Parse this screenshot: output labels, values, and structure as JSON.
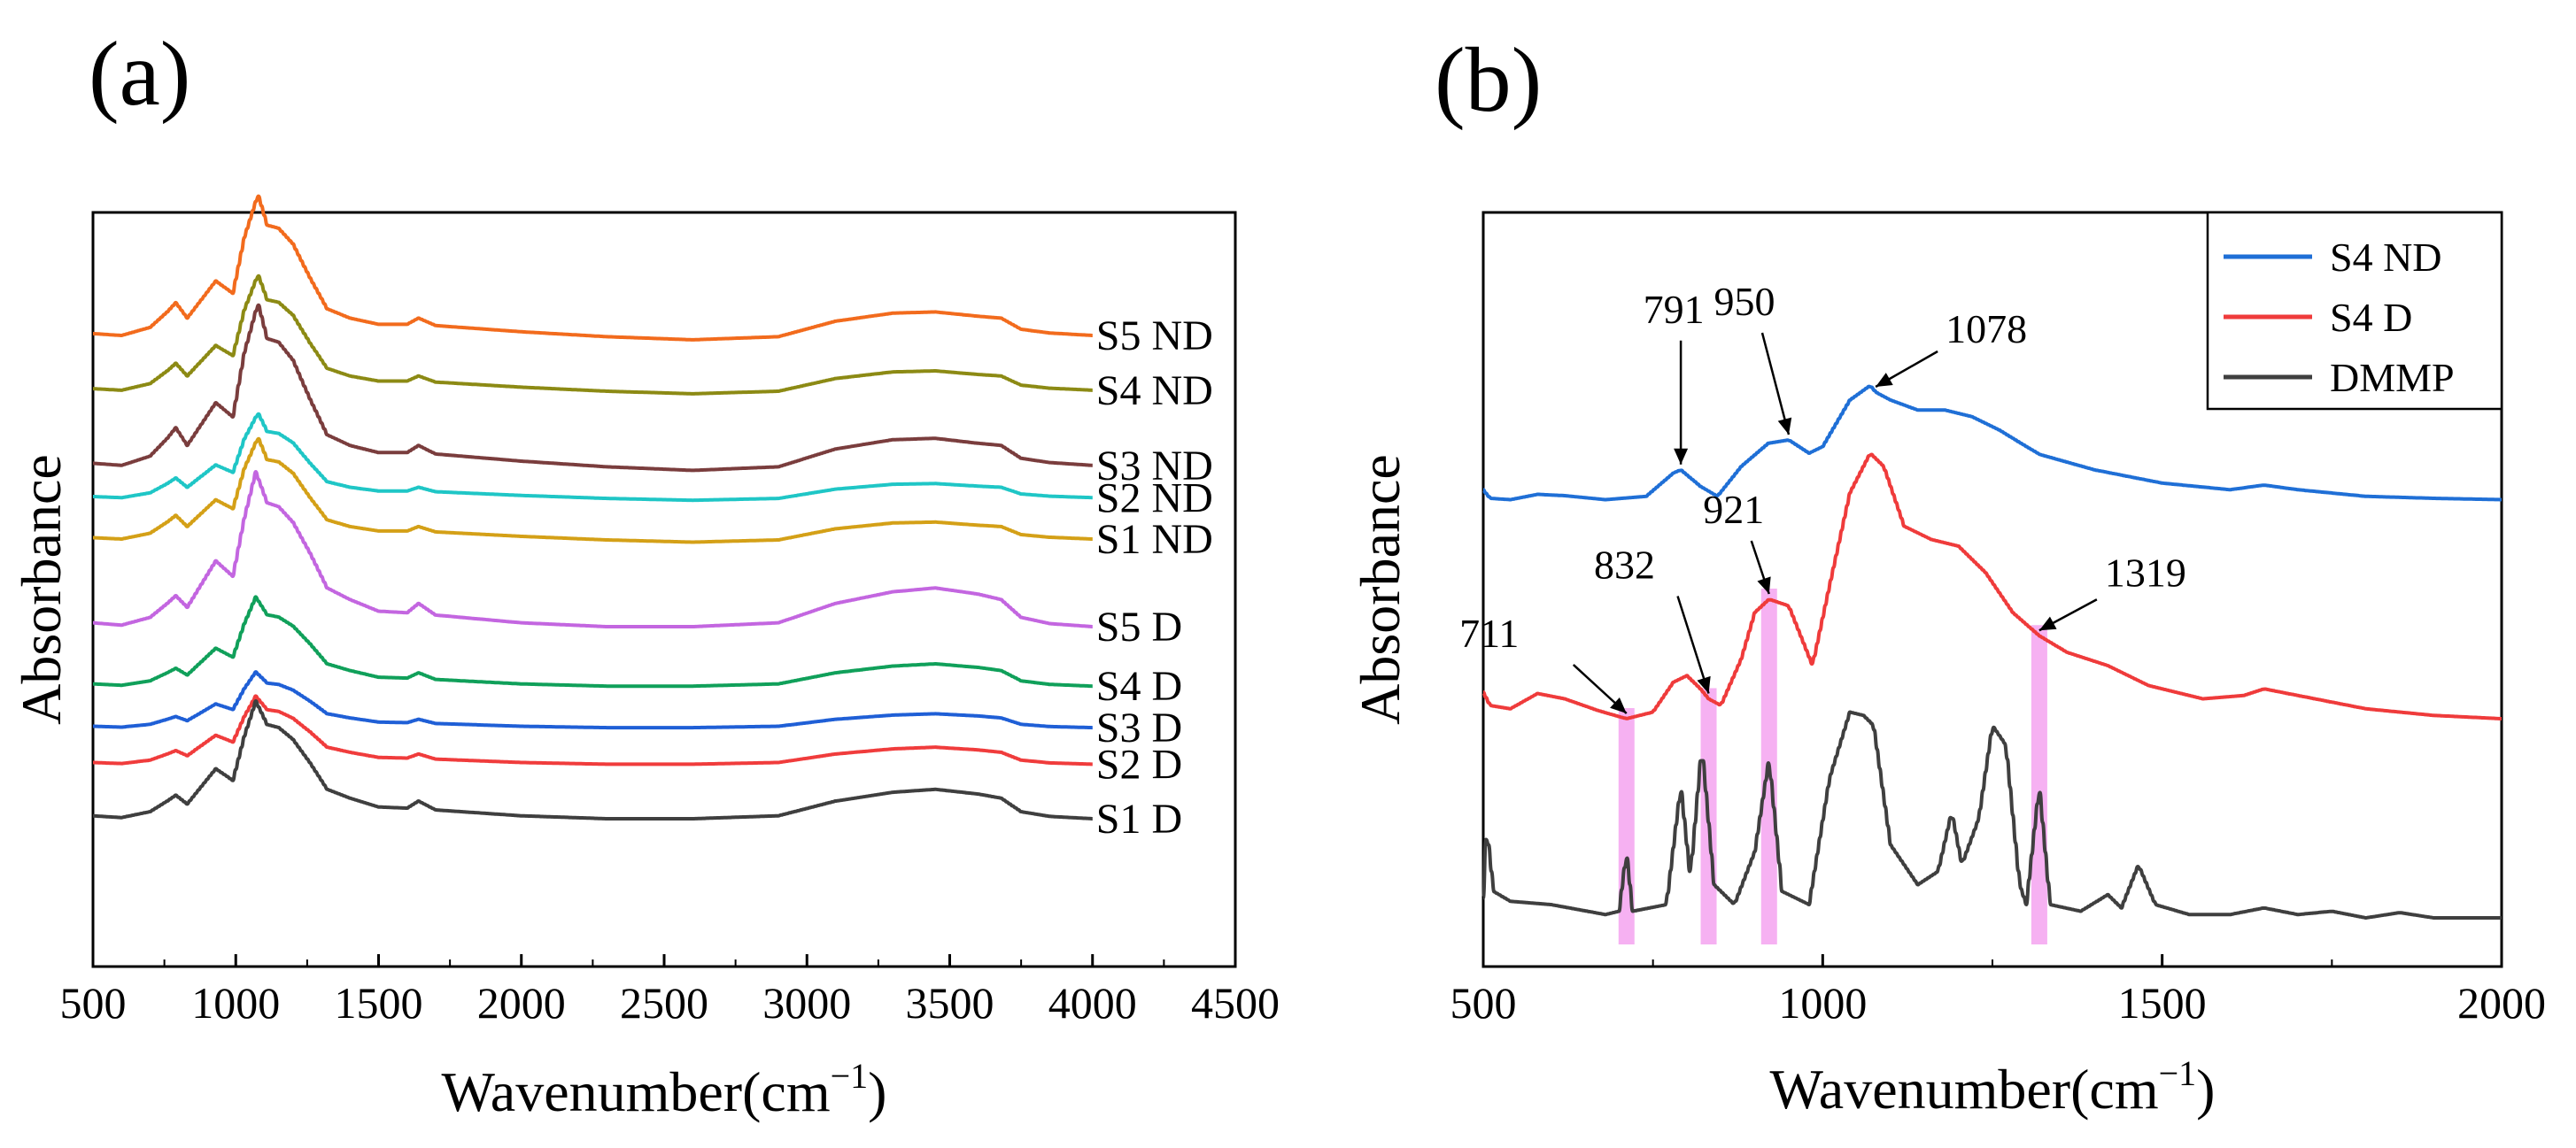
{
  "chart_data": [
    {
      "panel": "(a)",
      "type": "line",
      "xlabel": "Wavenumber(cm",
      "xlabel_sup": "−1",
      "xlabel_close": ")",
      "ylabel": "Absorbance",
      "xlim": [
        500,
        4500
      ],
      "xticks": [
        500,
        1000,
        1500,
        2000,
        2500,
        3000,
        3500,
        4000,
        4500
      ],
      "x_data_range": [
        500,
        4000
      ],
      "series": [
        {
          "name": "S5 ND",
          "color": "#f26b1d",
          "template": "nd",
          "offset": 9.88,
          "scale": 1.0
        },
        {
          "name": "S4 ND",
          "color": "#8c8a14",
          "template": "nd",
          "offset": 9.0,
          "scale": 0.82
        },
        {
          "name": "S3 ND",
          "color": "#7a3d3d",
          "template": "nd",
          "offset": 7.78,
          "scale": 1.15
        },
        {
          "name": "S2 ND",
          "color": "#1fc6c6",
          "template": "nd",
          "offset": 7.27,
          "scale": 0.6
        },
        {
          "name": "S1 ND",
          "color": "#d4a017",
          "template": "nd",
          "offset": 6.6,
          "scale": 0.72
        },
        {
          "name": "S5 D",
          "color": "#c366e0",
          "template": "d",
          "offset": 5.2,
          "scale": 1.25
        },
        {
          "name": "S4 D",
          "color": "#10a05a",
          "template": "d",
          "offset": 4.24,
          "scale": 0.72
        },
        {
          "name": "S3 D",
          "color": "#1f5fd6",
          "template": "d",
          "offset": 3.57,
          "scale": 0.45
        },
        {
          "name": "S2 D",
          "color": "#f03c3c",
          "template": "d",
          "offset": 2.98,
          "scale": 0.55
        },
        {
          "name": "S1 D",
          "color": "#3f3f3f",
          "template": "d",
          "offset": 2.1,
          "scale": 0.95
        }
      ],
      "templates": {
        "nd": [
          [
            500,
            0.05
          ],
          [
            600,
            0.02
          ],
          [
            700,
            0.15
          ],
          [
            760,
            0.4
          ],
          [
            790,
            0.55
          ],
          [
            830,
            0.3
          ],
          [
            880,
            0.6
          ],
          [
            930,
            0.9
          ],
          [
            960,
            0.8
          ],
          [
            990,
            0.7
          ],
          [
            1030,
            1.6
          ],
          [
            1078,
            2.3
          ],
          [
            1110,
            1.8
          ],
          [
            1150,
            1.75
          ],
          [
            1200,
            1.5
          ],
          [
            1260,
            0.95
          ],
          [
            1320,
            0.45
          ],
          [
            1400,
            0.3
          ],
          [
            1500,
            0.2
          ],
          [
            1600,
            0.2
          ],
          [
            1640,
            0.3
          ],
          [
            1700,
            0.18
          ],
          [
            2000,
            0.08
          ],
          [
            2300,
            0.0
          ],
          [
            2600,
            -0.05
          ],
          [
            2900,
            0.0
          ],
          [
            3100,
            0.25
          ],
          [
            3300,
            0.38
          ],
          [
            3450,
            0.4
          ],
          [
            3600,
            0.33
          ],
          [
            3680,
            0.3
          ],
          [
            3750,
            0.12
          ],
          [
            3850,
            0.06
          ],
          [
            4000,
            0.02
          ]
        ],
        "d": [
          [
            500,
            0.05
          ],
          [
            600,
            0.02
          ],
          [
            700,
            0.12
          ],
          [
            760,
            0.3
          ],
          [
            790,
            0.4
          ],
          [
            830,
            0.25
          ],
          [
            880,
            0.55
          ],
          [
            930,
            0.85
          ],
          [
            960,
            0.75
          ],
          [
            990,
            0.65
          ],
          [
            1030,
            1.4
          ],
          [
            1070,
            2.0
          ],
          [
            1110,
            1.6
          ],
          [
            1150,
            1.55
          ],
          [
            1200,
            1.35
          ],
          [
            1260,
            0.95
          ],
          [
            1320,
            0.5
          ],
          [
            1400,
            0.35
          ],
          [
            1500,
            0.2
          ],
          [
            1600,
            0.18
          ],
          [
            1640,
            0.3
          ],
          [
            1700,
            0.15
          ],
          [
            2000,
            0.05
          ],
          [
            2300,
            0.0
          ],
          [
            2600,
            0.0
          ],
          [
            2900,
            0.05
          ],
          [
            3100,
            0.3
          ],
          [
            3300,
            0.45
          ],
          [
            3450,
            0.5
          ],
          [
            3600,
            0.42
          ],
          [
            3680,
            0.35
          ],
          [
            3750,
            0.12
          ],
          [
            3850,
            0.04
          ],
          [
            4000,
            0.0
          ]
        ]
      }
    },
    {
      "panel": "(b)",
      "type": "line",
      "xlabel": "Wavenumber(cm",
      "xlabel_sup": "−1",
      "xlabel_close": ")",
      "ylabel": "Absorbance",
      "xlim": [
        500,
        2000
      ],
      "xticks": [
        500,
        1000,
        1500,
        2000
      ],
      "legend": {
        "placement": "top-right",
        "entries": [
          "S4 ND",
          "S4 D",
          "DMMP"
        ]
      },
      "series": [
        {
          "name": "S4 ND",
          "color": "#1f6fd6",
          "offset": 6.3,
          "points": [
            [
              500,
              0.15
            ],
            [
              510,
              0.02
            ],
            [
              540,
              0.0
            ],
            [
              580,
              0.08
            ],
            [
              620,
              0.06
            ],
            [
              680,
              0.0
            ],
            [
              740,
              0.05
            ],
            [
              780,
              0.4
            ],
            [
              791,
              0.45
            ],
            [
              820,
              0.2
            ],
            [
              845,
              0.05
            ],
            [
              880,
              0.5
            ],
            [
              920,
              0.85
            ],
            [
              950,
              0.9
            ],
            [
              980,
              0.7
            ],
            [
              1000,
              0.8
            ],
            [
              1040,
              1.5
            ],
            [
              1070,
              1.72
            ],
            [
              1078,
              1.62
            ],
            [
              1100,
              1.5
            ],
            [
              1140,
              1.35
            ],
            [
              1180,
              1.35
            ],
            [
              1220,
              1.25
            ],
            [
              1260,
              1.05
            ],
            [
              1300,
              0.8
            ],
            [
              1320,
              0.68
            ],
            [
              1400,
              0.45
            ],
            [
              1500,
              0.25
            ],
            [
              1600,
              0.15
            ],
            [
              1650,
              0.22
            ],
            [
              1700,
              0.15
            ],
            [
              1800,
              0.05
            ],
            [
              1900,
              0.02
            ],
            [
              2000,
              0.0
            ]
          ]
        },
        {
          "name": "S4 D",
          "color": "#ef3b3b",
          "offset": 3.0,
          "points": [
            [
              500,
              0.4
            ],
            [
              510,
              0.2
            ],
            [
              540,
              0.15
            ],
            [
              580,
              0.38
            ],
            [
              620,
              0.3
            ],
            [
              670,
              0.12
            ],
            [
              711,
              0.0
            ],
            [
              750,
              0.1
            ],
            [
              780,
              0.55
            ],
            [
              800,
              0.65
            ],
            [
              820,
              0.45
            ],
            [
              832,
              0.3
            ],
            [
              850,
              0.2
            ],
            [
              880,
              0.9
            ],
            [
              900,
              1.6
            ],
            [
              921,
              1.8
            ],
            [
              950,
              1.7
            ],
            [
              985,
              0.8
            ],
            [
              1010,
              2.0
            ],
            [
              1040,
              3.4
            ],
            [
              1070,
              4.0
            ],
            [
              1090,
              3.8
            ],
            [
              1120,
              2.9
            ],
            [
              1160,
              2.7
            ],
            [
              1200,
              2.6
            ],
            [
              1240,
              2.2
            ],
            [
              1280,
              1.6
            ],
            [
              1319,
              1.25
            ],
            [
              1360,
              1.0
            ],
            [
              1420,
              0.8
            ],
            [
              1480,
              0.5
            ],
            [
              1560,
              0.3
            ],
            [
              1620,
              0.35
            ],
            [
              1650,
              0.45
            ],
            [
              1700,
              0.35
            ],
            [
              1800,
              0.15
            ],
            [
              1900,
              0.05
            ],
            [
              2000,
              0.0
            ]
          ]
        },
        {
          "name": "DMMP",
          "color": "#3f3f3f",
          "offset": 0.0,
          "points": [
            [
              500,
              0.3
            ],
            [
              505,
              1.4
            ],
            [
              515,
              0.4
            ],
            [
              540,
              0.25
            ],
            [
              600,
              0.2
            ],
            [
              680,
              0.05
            ],
            [
              700,
              0.1
            ],
            [
              711,
              1.0
            ],
            [
              720,
              0.1
            ],
            [
              770,
              0.2
            ],
            [
              791,
              2.0
            ],
            [
              805,
              0.6
            ],
            [
              822,
              2.6
            ],
            [
              840,
              0.5
            ],
            [
              870,
              0.2
            ],
            [
              900,
              1.0
            ],
            [
              921,
              2.4
            ],
            [
              940,
              0.4
            ],
            [
              980,
              0.2
            ],
            [
              1010,
              2.1
            ],
            [
              1040,
              3.1
            ],
            [
              1060,
              3.05
            ],
            [
              1075,
              2.9
            ],
            [
              1100,
              1.1
            ],
            [
              1140,
              0.5
            ],
            [
              1170,
              0.7
            ],
            [
              1190,
              1.6
            ],
            [
              1205,
              0.8
            ],
            [
              1230,
              1.5
            ],
            [
              1250,
              2.9
            ],
            [
              1270,
              2.6
            ],
            [
              1290,
              0.5
            ],
            [
              1300,
              0.2
            ],
            [
              1319,
              2.0
            ],
            [
              1335,
              0.2
            ],
            [
              1380,
              0.1
            ],
            [
              1420,
              0.35
            ],
            [
              1440,
              0.15
            ],
            [
              1465,
              0.8
            ],
            [
              1490,
              0.2
            ],
            [
              1540,
              0.05
            ],
            [
              1600,
              0.05
            ],
            [
              1650,
              0.15
            ],
            [
              1700,
              0.05
            ],
            [
              1750,
              0.1
            ],
            [
              1800,
              0.0
            ],
            [
              1850,
              0.08
            ],
            [
              1900,
              0.0
            ],
            [
              2000,
              0.0
            ]
          ]
        }
      ],
      "highlights": [
        711,
        832,
        921,
        1319
      ],
      "annotations": [
        {
          "text": "791",
          "x": 791
        },
        {
          "text": "950",
          "x": 950
        },
        {
          "text": "1078",
          "x": 1078
        },
        {
          "text": "711",
          "x": 711
        },
        {
          "text": "832",
          "x": 832
        },
        {
          "text": "921",
          "x": 921
        },
        {
          "text": "1319",
          "x": 1319
        }
      ]
    }
  ]
}
